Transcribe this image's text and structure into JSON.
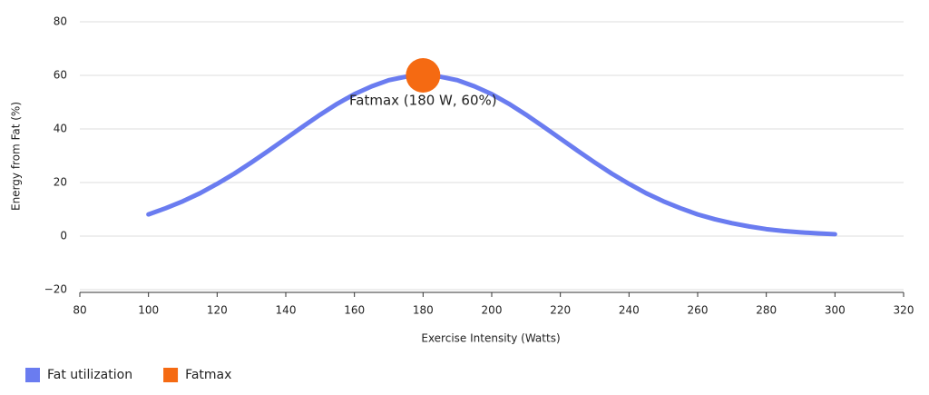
{
  "chart_data": {
    "type": "line",
    "xlabel": "Exercise Intensity (Watts)",
    "ylabel": "Energy from Fat (%)",
    "xlim": [
      80,
      320
    ],
    "xticks": [
      80,
      100,
      120,
      140,
      160,
      180,
      200,
      220,
      240,
      260,
      280,
      300,
      320
    ],
    "ylim": [
      -20,
      80
    ],
    "yticks": [
      {
        "value": -20,
        "label": "−20"
      },
      0,
      20,
      40,
      60,
      80
    ],
    "grid": true,
    "legend": "bottom-left",
    "annotation": "Fatmax (180 W, 60%)",
    "series": [
      {
        "name": "Fat utilization",
        "color": "#6a7cf0",
        "mode": "line",
        "x": [
          100,
          105,
          110,
          115,
          120,
          125,
          130,
          135,
          140,
          145,
          150,
          155,
          160,
          165,
          170,
          175,
          180,
          185,
          190,
          195,
          200,
          205,
          210,
          215,
          220,
          225,
          230,
          235,
          240,
          245,
          250,
          255,
          260,
          265,
          270,
          275,
          280,
          285,
          290,
          295,
          300
        ],
        "values": [
          8.1,
          10.4,
          13.0,
          16.0,
          19.5,
          23.3,
          27.5,
          31.9,
          36.4,
          40.9,
          45.3,
          49.4,
          53.0,
          55.9,
          58.2,
          59.5,
          60,
          59.5,
          58.2,
          55.9,
          53.0,
          49.4,
          45.3,
          40.9,
          36.4,
          31.9,
          27.5,
          23.3,
          19.5,
          16.0,
          13.0,
          10.4,
          8.1,
          6.3,
          4.8,
          3.6,
          2.6,
          1.9,
          1.4,
          1.0,
          0.7
        ]
      },
      {
        "name": "Fatmax",
        "color": "#f56a12",
        "mode": "markers",
        "x": [
          180
        ],
        "values": [
          60
        ]
      }
    ]
  }
}
